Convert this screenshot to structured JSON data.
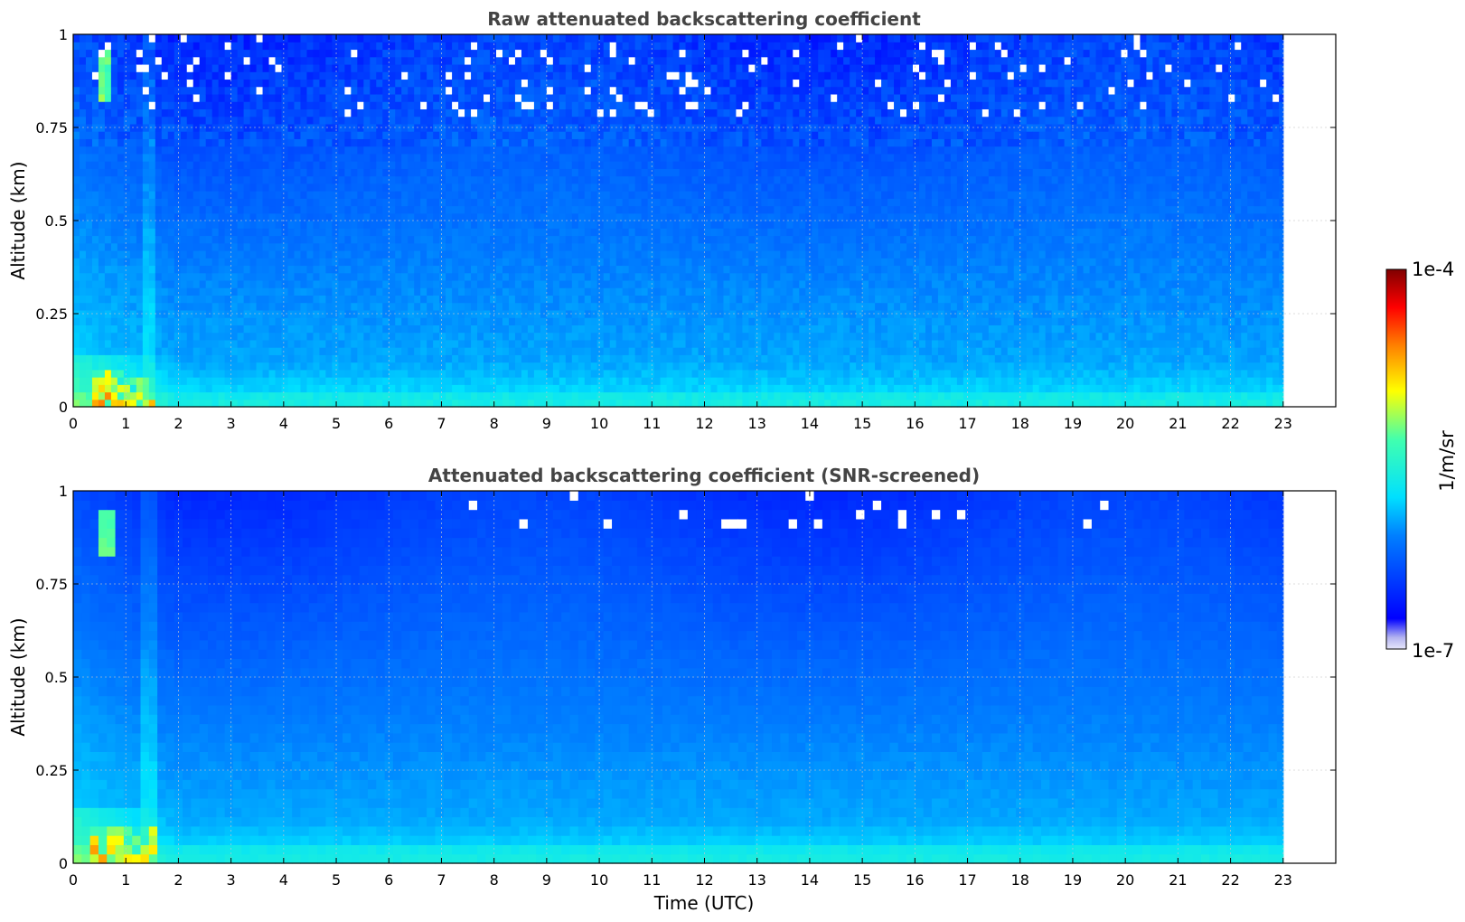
{
  "chart_data": [
    {
      "type": "heatmap",
      "title": "Raw attenuated backscattering coefficient",
      "xlabel": "",
      "ylabel": "Altitude (km)",
      "xlim": [
        0,
        24
      ],
      "ylim": [
        0,
        1
      ],
      "x_ticks": [
        0,
        1,
        2,
        3,
        4,
        5,
        6,
        7,
        8,
        9,
        10,
        11,
        12,
        13,
        14,
        15,
        16,
        17,
        18,
        19,
        20,
        21,
        22,
        23
      ],
      "y_ticks": [
        0,
        0.25,
        0.5,
        0.75,
        1
      ],
      "y_tick_labels": [
        "0",
        "0.25",
        "0.5",
        "0.75",
        "1"
      ],
      "data_x_range": [
        0,
        23
      ],
      "grid": true,
      "z_scale": "log",
      "z_range": [
        1e-07,
        0.0001
      ],
      "features": [
        {
          "name": "near-surface aerosol/cloud signal",
          "x": [
            0,
            2
          ],
          "y": [
            0,
            0.12
          ],
          "level": "high"
        },
        {
          "name": "cloud streak near 0.6 UTC",
          "x": [
            0.5,
            0.7
          ],
          "y": [
            0.85,
            0.95
          ],
          "level": "high"
        },
        {
          "name": "noise above 0.75 km",
          "x": [
            2,
            23
          ],
          "y": [
            0.75,
            1
          ],
          "level": "low-noisy"
        }
      ]
    },
    {
      "type": "heatmap",
      "title": "Attenuated backscattering coefficient (SNR-screened)",
      "xlabel": "Time (UTC)",
      "ylabel": "Altitude (km)",
      "xlim": [
        0,
        24
      ],
      "ylim": [
        0,
        1
      ],
      "x_ticks": [
        0,
        1,
        2,
        3,
        4,
        5,
        6,
        7,
        8,
        9,
        10,
        11,
        12,
        13,
        14,
        15,
        16,
        17,
        18,
        19,
        20,
        21,
        22,
        23
      ],
      "y_ticks": [
        0,
        0.25,
        0.5,
        0.75,
        1
      ],
      "y_tick_labels": [
        "0",
        "0.25",
        "0.5",
        "0.75",
        "1"
      ],
      "data_x_range": [
        0,
        23
      ],
      "grid": true,
      "z_scale": "log",
      "z_range": [
        1e-07,
        0.0001
      ],
      "features": [
        {
          "name": "near-surface aerosol/cloud signal",
          "x": [
            0,
            2
          ],
          "y": [
            0,
            0.12
          ],
          "level": "high"
        },
        {
          "name": "screened-out pixels",
          "x": [
            7,
            20
          ],
          "y": [
            0.9,
            1
          ],
          "level": "masked"
        }
      ]
    }
  ],
  "colorbar": {
    "label": "1/m/sr",
    "max_label": "1e-4",
    "min_label": "1e-7",
    "colormap": "jet",
    "scale": "log"
  }
}
